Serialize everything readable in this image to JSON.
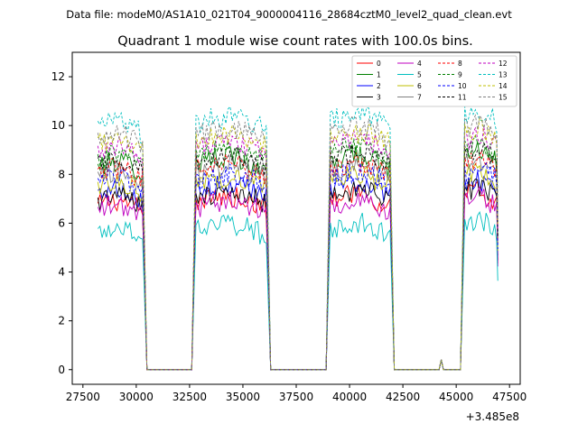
{
  "chart_data": {
    "type": "line",
    "suptitle": "Data file: modeM0/AS1A10_021T04_9000004116_28684cztM0_level2_quad_clean.evt",
    "title": "Quadrant 1 module wise count rates with 100.0s bins.",
    "xlabel": "",
    "ylabel": "",
    "x_offset_label": "+3.485e8",
    "xlim": [
      27000,
      48000
    ],
    "ylim": [
      -0.6,
      13.0
    ],
    "xticks": [
      27500,
      30000,
      32500,
      35000,
      37500,
      40000,
      42500,
      45000,
      47500
    ],
    "xtick_labels": [
      "27500",
      "30000",
      "32500",
      "35000",
      "37500",
      "40000",
      "42500",
      "45000",
      "47500"
    ],
    "yticks": [
      0,
      2,
      4,
      6,
      8,
      10,
      12
    ],
    "ytick_labels": [
      "0",
      "2",
      "4",
      "6",
      "8",
      "10",
      "12"
    ],
    "segments": [
      {
        "start": 28200,
        "end": 30300,
        "drop_end": 30500,
        "seed": 1
      },
      {
        "rise_start": 32600,
        "start": 32800,
        "end": 36100,
        "drop_end": 36300,
        "seed": 2
      },
      {
        "rise_start": 38900,
        "start": 39100,
        "end": 41900,
        "drop_end": 42100,
        "seed": 3
      },
      {
        "rise_start": 45200,
        "start": 45400,
        "end": 46900,
        "drop_end": 46900,
        "seed": 4
      }
    ],
    "zero_gaps": [
      [
        30500,
        32600
      ],
      [
        36300,
        38900
      ],
      [
        42100,
        45200
      ]
    ],
    "blip": {
      "x": 44300,
      "y": 0.4
    },
    "series": [
      {
        "name": "0",
        "color": "#ff0000",
        "dashed": false,
        "mean": 6.7
      },
      {
        "name": "1",
        "color": "#008000",
        "dashed": false,
        "mean": 8.3
      },
      {
        "name": "2",
        "color": "#0000ff",
        "dashed": false,
        "mean": 7.2
      },
      {
        "name": "3",
        "color": "#000000",
        "dashed": false,
        "mean": 6.9
      },
      {
        "name": "4",
        "color": "#c000c0",
        "dashed": false,
        "mean": 6.5
      },
      {
        "name": "5",
        "color": "#00bfbf",
        "dashed": false,
        "mean": 5.6
      },
      {
        "name": "6",
        "color": "#bfbf00",
        "dashed": false,
        "mean": 7.5
      },
      {
        "name": "7",
        "color": "#808080",
        "dashed": false,
        "mean": 7.9
      },
      {
        "name": "8",
        "color": "#ff0000",
        "dashed": true,
        "mean": 8.0
      },
      {
        "name": "9",
        "color": "#008000",
        "dashed": true,
        "mean": 8.6
      },
      {
        "name": "10",
        "color": "#0000ff",
        "dashed": true,
        "mean": 7.6
      },
      {
        "name": "11",
        "color": "#000000",
        "dashed": true,
        "mean": 8.4
      },
      {
        "name": "12",
        "color": "#c000c0",
        "dashed": true,
        "mean": 8.9
      },
      {
        "name": "13",
        "color": "#00bfbf",
        "dashed": true,
        "mean": 9.9
      },
      {
        "name": "14",
        "color": "#bfbf00",
        "dashed": true,
        "mean": 9.2
      },
      {
        "name": "15",
        "color": "#808080",
        "dashed": true,
        "mean": 9.4
      }
    ],
    "legend": {
      "position": "top-right",
      "columns": 4
    }
  }
}
